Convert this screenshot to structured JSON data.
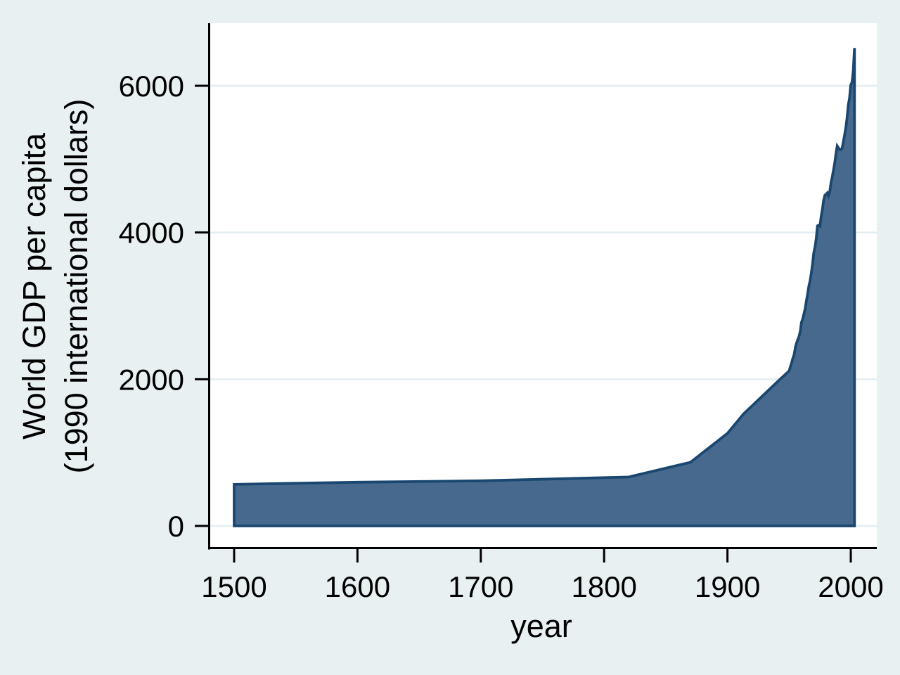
{
  "chart_data": {
    "type": "area",
    "title": "",
    "xlabel": "year",
    "ylabel_line1": "World GDP per capita",
    "ylabel_line2": "(1990 international dollars)",
    "x_ticks": [
      1500,
      1600,
      1700,
      1800,
      1900,
      2000
    ],
    "y_ticks": [
      0,
      2000,
      4000,
      6000
    ],
    "xlim": [
      1480,
      2021
    ],
    "ylim": [
      -300,
      6850
    ],
    "grid": true,
    "legend": "none",
    "series": [
      {
        "name": "World GDP per capita (1990 international dollars)",
        "points": [
          [
            1500,
            566
          ],
          [
            1600,
            596
          ],
          [
            1700,
            615
          ],
          [
            1820,
            667
          ],
          [
            1870,
            867
          ],
          [
            1900,
            1262
          ],
          [
            1913,
            1526
          ],
          [
            1940,
            1958
          ],
          [
            1950,
            2113
          ],
          [
            1951,
            2170
          ],
          [
            1952,
            2220
          ],
          [
            1953,
            2285
          ],
          [
            1954,
            2330
          ],
          [
            1955,
            2430
          ],
          [
            1956,
            2490
          ],
          [
            1957,
            2540
          ],
          [
            1958,
            2580
          ],
          [
            1959,
            2650
          ],
          [
            1960,
            2773
          ],
          [
            1961,
            2820
          ],
          [
            1962,
            2890
          ],
          [
            1963,
            2960
          ],
          [
            1964,
            3070
          ],
          [
            1965,
            3160
          ],
          [
            1966,
            3270
          ],
          [
            1967,
            3340
          ],
          [
            1968,
            3450
          ],
          [
            1969,
            3570
          ],
          [
            1970,
            3725
          ],
          [
            1971,
            3800
          ],
          [
            1972,
            3920
          ],
          [
            1973,
            4091
          ],
          [
            1974,
            4100
          ],
          [
            1975,
            4088
          ],
          [
            1976,
            4220
          ],
          [
            1977,
            4320
          ],
          [
            1978,
            4440
          ],
          [
            1979,
            4510
          ],
          [
            1980,
            4520
          ],
          [
            1981,
            4540
          ],
          [
            1982,
            4500
          ],
          [
            1983,
            4560
          ],
          [
            1984,
            4680
          ],
          [
            1985,
            4760
          ],
          [
            1986,
            4850
          ],
          [
            1987,
            4950
          ],
          [
            1988,
            5080
          ],
          [
            1989,
            5180
          ],
          [
            1990,
            5154
          ],
          [
            1991,
            5130
          ],
          [
            1992,
            5130
          ],
          [
            1993,
            5150
          ],
          [
            1994,
            5240
          ],
          [
            1995,
            5330
          ],
          [
            1996,
            5430
          ],
          [
            1997,
            5560
          ],
          [
            1998,
            5740
          ],
          [
            1999,
            5830
          ],
          [
            2000,
            6012
          ],
          [
            2001,
            6049
          ],
          [
            2002,
            6200
          ],
          [
            2003,
            6516
          ]
        ],
        "baseline": 0
      }
    ],
    "colors": {
      "background": "#e9f0f2",
      "plot_background": "#ffffff",
      "gridline": "#e3edf0",
      "area_fill": "#47698d",
      "area_stroke": "#1a476f",
      "axis": "#000000",
      "text": "#000000"
    }
  }
}
